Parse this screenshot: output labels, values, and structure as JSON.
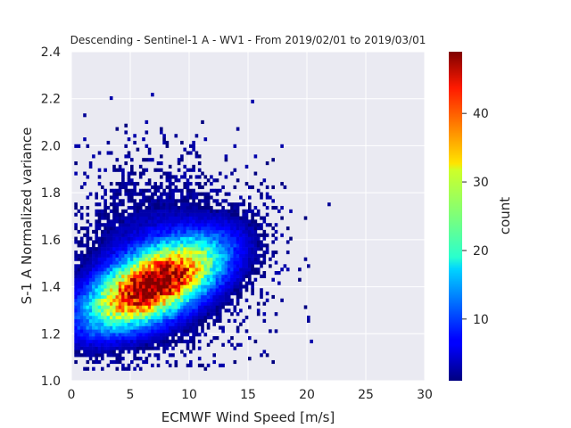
{
  "chart_data": {
    "type": "heatmap",
    "title": "Descending - Sentinel-1 A - WV1 - From 2019/02/01 to 2019/03/01",
    "xlabel": "ECMWF Wind Speed [m/s]",
    "ylabel": "S-1 A Normalized variance",
    "xlim": [
      0,
      30
    ],
    "ylim": [
      1.0,
      2.4
    ],
    "xticks": [
      "0",
      "5",
      "10",
      "15",
      "20",
      "25",
      "30"
    ],
    "yticks": [
      "1.0",
      "1.2",
      "1.4",
      "1.6",
      "1.8",
      "2.0",
      "2.2",
      "2.4"
    ],
    "grid": true,
    "background": "#eaeaf2",
    "colormap": "jet",
    "colorbar": {
      "label": "count",
      "range": [
        1,
        49
      ],
      "ticks": [
        "10",
        "20",
        "30",
        "40"
      ]
    },
    "distribution": {
      "peak_count": 49,
      "peak_location": {
        "x": 7,
        "y": 1.41
      },
      "core_extent": {
        "x": [
          3,
          11
        ],
        "y": [
          1.25,
          1.55
        ]
      },
      "extent": {
        "x": [
          0.3,
          25
        ],
        "y": [
          1.05,
          2.38
        ]
      }
    }
  }
}
